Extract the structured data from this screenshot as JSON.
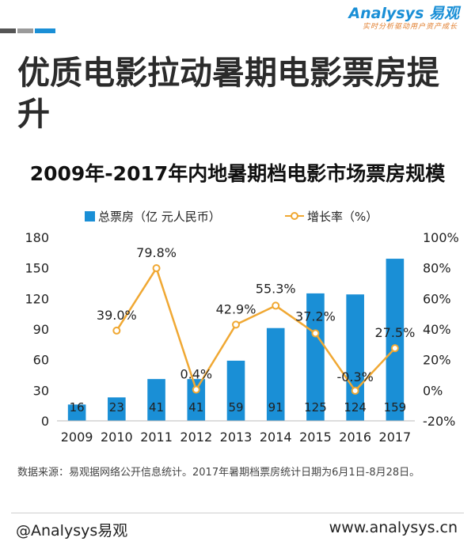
{
  "brand": {
    "logo_text": "Analysys 易观",
    "tagline": "实时分析驱动用户资产成长",
    "accent_blue": "#1a8fd6",
    "accent_orange": "#f0a833"
  },
  "headline": "优质电影拉动暑期电影票房提升",
  "chart_data": {
    "type": "bar+line",
    "title": "2009年-2017年内地暑期档电影市场票房规模",
    "categories": [
      "2009",
      "2010",
      "2011",
      "2012",
      "2013",
      "2014",
      "2015",
      "2016",
      "2017"
    ],
    "series": [
      {
        "name": "总票房（亿 元人民币）",
        "type": "bar",
        "axis": "left",
        "values": [
          16,
          23,
          41,
          41,
          59,
          91,
          125,
          124,
          159
        ],
        "labels": [
          "16",
          "23",
          "41",
          "41",
          "59",
          "91",
          "125",
          "124",
          "159"
        ]
      },
      {
        "name": "增长率（%）",
        "type": "line",
        "axis": "right",
        "values": [
          null,
          39.0,
          79.8,
          0.4,
          42.9,
          55.3,
          37.2,
          -0.3,
          27.5
        ],
        "labels": [
          "",
          "39.0%",
          "79.8%",
          "0.4%",
          "42.9%",
          "55.3%",
          "37.2%",
          "-0.3%",
          "27.5%"
        ]
      }
    ],
    "y_left": {
      "range": [
        0,
        180
      ],
      "ticks": [
        "0",
        "30",
        "60",
        "90",
        "120",
        "150",
        "180"
      ]
    },
    "y_right": {
      "range": [
        -20,
        100
      ],
      "ticks": [
        "-20%",
        "0%",
        "20%",
        "40%",
        "60%",
        "80%",
        "100%"
      ]
    },
    "grid": false,
    "legend": "top",
    "colors": {
      "bar": "#1a8fd6",
      "line": "#f0a833"
    }
  },
  "source_note": "数据来源：易观据网络公开信息统计。2017年暑期档票房统计日期为6月1日-8月28日。",
  "footer": {
    "left": "@Analysys易观",
    "right": "www.analysys.cn"
  }
}
